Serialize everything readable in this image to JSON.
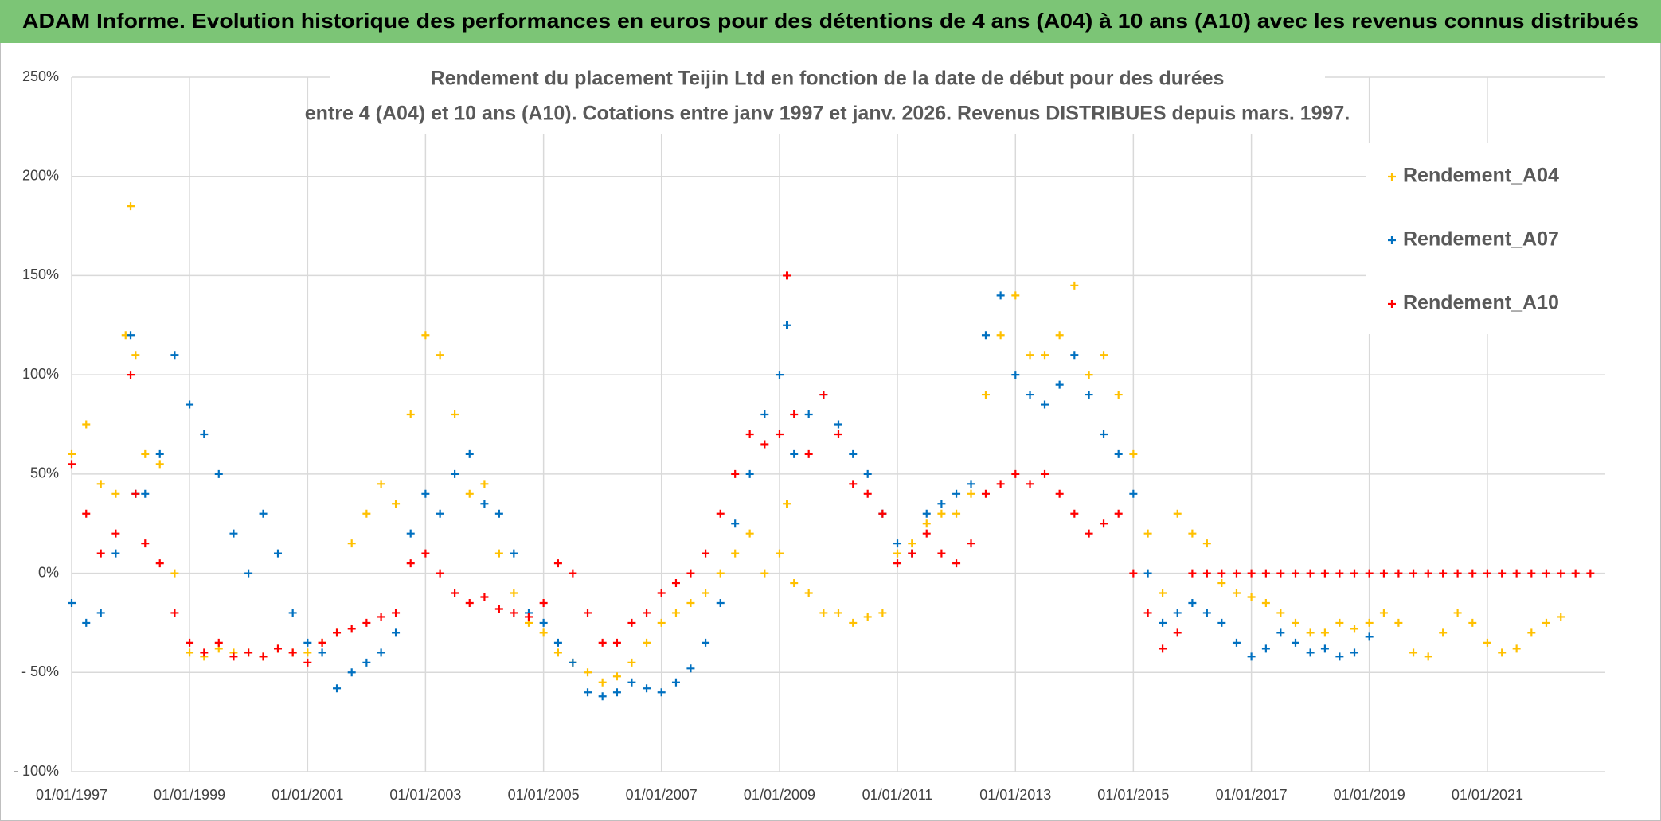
{
  "chart_data": {
    "type": "scatter",
    "title": "ADAM Informe. Evolution historique des performances en euros pour des détentions de 4 ans (A04) à 10 ans (A10) avec les revenus connus distribués",
    "subtitle": [
      "Rendement du placement Teijin Ltd en fonction de la date de début pour des durées",
      "entre 4 (A04) et 10 ans (A10). Cotations entre janv 1997 et janv. 2026. Revenus DISTRIBUES depuis mars. 1997."
    ],
    "xlim": [
      "01/01/1997",
      "01/01/2023"
    ],
    "xticks": [
      "01/01/1997",
      "01/01/1999",
      "01/01/2001",
      "01/01/2003",
      "01/01/2005",
      "01/01/2007",
      "01/01/2009",
      "01/01/2011",
      "01/01/2013",
      "01/01/2015",
      "01/01/2017",
      "01/01/2019",
      "01/01/2021"
    ],
    "ylim": [
      -100,
      250
    ],
    "yticks": [
      {
        "value": -100,
        "label": "- 100%"
      },
      {
        "value": -50,
        "label": "- 50%"
      },
      {
        "value": 0,
        "label": "0%"
      },
      {
        "value": 50,
        "label": "50%"
      },
      {
        "value": 100,
        "label": "100%"
      },
      {
        "value": 150,
        "label": "150%"
      },
      {
        "value": 200,
        "label": "200%"
      },
      {
        "value": 250,
        "label": "250%"
      }
    ],
    "grid": true,
    "legend": "top-right",
    "series": [
      {
        "name": "Rendement_A04",
        "color": "#ffc000",
        "x": [
          "01/01/1997",
          "01/04/1997",
          "01/07/1997",
          "01/10/1997",
          "01/12/1997",
          "01/01/1998",
          "01/02/1998",
          "01/04/1998",
          "01/07/1998",
          "01/10/1998",
          "01/01/1999",
          "01/04/1999",
          "01/07/1999",
          "01/10/1999",
          "01/01/2000",
          "01/04/2000",
          "01/07/2000",
          "01/10/2000",
          "01/01/2001",
          "01/04/2001",
          "01/07/2001",
          "01/10/2001",
          "01/01/2002",
          "01/04/2002",
          "01/07/2002",
          "01/10/2002",
          "01/01/2003",
          "01/04/2003",
          "01/07/2003",
          "01/10/2003",
          "01/01/2004",
          "01/04/2004",
          "01/07/2004",
          "01/10/2004",
          "01/01/2005",
          "01/04/2005",
          "01/07/2005",
          "01/10/2005",
          "01/01/2006",
          "01/04/2006",
          "01/07/2006",
          "01/10/2006",
          "01/01/2007",
          "01/04/2007",
          "01/07/2007",
          "01/10/2007",
          "01/01/2008",
          "01/04/2008",
          "01/07/2008",
          "01/10/2008",
          "01/01/2009",
          "15/02/2009",
          "01/04/2009",
          "01/07/2009",
          "01/10/2009",
          "01/01/2010",
          "01/04/2010",
          "01/07/2010",
          "01/10/2010",
          "01/01/2011",
          "01/04/2011",
          "01/07/2011",
          "01/10/2011",
          "01/01/2012",
          "01/04/2012",
          "01/07/2012",
          "01/10/2012",
          "01/01/2013",
          "01/04/2013",
          "01/07/2013",
          "01/10/2013",
          "01/01/2014",
          "01/04/2014",
          "01/07/2014",
          "01/10/2014",
          "01/01/2015",
          "01/04/2015",
          "01/07/2015",
          "01/10/2015",
          "01/01/2016",
          "01/04/2016",
          "01/07/2016",
          "01/10/2016",
          "01/01/2017",
          "01/04/2017",
          "01/07/2017",
          "01/10/2017",
          "01/01/2018",
          "01/04/2018",
          "01/07/2018",
          "01/10/2018",
          "01/01/2019",
          "01/04/2019",
          "01/07/2019",
          "01/10/2019",
          "01/01/2020",
          "01/04/2020",
          "01/07/2020",
          "01/10/2020",
          "01/01/2021",
          "01/04/2021",
          "01/07/2021",
          "01/10/2021",
          "01/01/2022",
          "01/04/2022"
        ],
        "values": [
          60,
          75,
          45,
          40,
          120,
          185,
          110,
          60,
          55,
          0,
          -40,
          -42,
          -38,
          -40,
          -40,
          -42,
          -38,
          -40,
          -40,
          -35,
          -30,
          15,
          30,
          45,
          35,
          80,
          120,
          110,
          80,
          40,
          45,
          10,
          -10,
          -25,
          -30,
          -40,
          -45,
          -50,
          -55,
          -52,
          -45,
          -35,
          -25,
          -20,
          -15,
          -10,
          0,
          10,
          20,
          0,
          10,
          35,
          -5,
          -10,
          -20,
          -20,
          -25,
          -22,
          -20,
          10,
          15,
          25,
          30,
          30,
          40,
          90,
          120,
          140,
          110,
          110,
          120,
          145,
          100,
          110,
          90,
          60,
          20,
          -10,
          30,
          20,
          15,
          -5,
          -10,
          -12,
          -15,
          -20,
          -25,
          -30,
          -30,
          -25,
          -28,
          -25,
          -20,
          -25,
          -40,
          -42,
          -30,
          -20,
          -25,
          -35,
          -40,
          -38,
          -30,
          -25,
          -22
        ]
      },
      {
        "name": "Rendement_A07",
        "color": "#0070c0",
        "x": [
          "01/01/1997",
          "01/04/1997",
          "01/07/1997",
          "01/10/1997",
          "01/01/1998",
          "01/02/1998",
          "01/04/1998",
          "01/07/1998",
          "01/10/1998",
          "01/01/1999",
          "01/04/1999",
          "01/07/1999",
          "01/10/1999",
          "01/01/2000",
          "01/04/2000",
          "01/07/2000",
          "01/10/2000",
          "01/01/2001",
          "01/04/2001",
          "01/07/2001",
          "01/10/2001",
          "01/01/2002",
          "01/04/2002",
          "01/07/2002",
          "01/10/2002",
          "01/01/2003",
          "01/04/2003",
          "01/07/2003",
          "01/10/2003",
          "01/01/2004",
          "01/04/2004",
          "01/07/2004",
          "01/10/2004",
          "01/01/2005",
          "01/04/2005",
          "01/07/2005",
          "01/10/2005",
          "01/01/2006",
          "01/04/2006",
          "01/07/2006",
          "01/10/2006",
          "01/01/2007",
          "01/04/2007",
          "01/07/2007",
          "01/10/2007",
          "01/01/2008",
          "01/04/2008",
          "01/07/2008",
          "01/10/2008",
          "01/01/2009",
          "15/02/2009",
          "01/04/2009",
          "01/07/2009",
          "01/10/2009",
          "01/01/2010",
          "01/04/2010",
          "01/07/2010",
          "01/10/2010",
          "01/01/2011",
          "01/04/2011",
          "01/07/2011",
          "01/10/2011",
          "01/01/2012",
          "01/04/2012",
          "01/07/2012",
          "01/10/2012",
          "01/01/2013",
          "01/04/2013",
          "01/07/2013",
          "01/10/2013",
          "01/01/2014",
          "01/04/2014",
          "01/07/2014",
          "01/10/2014",
          "01/01/2015",
          "01/04/2015",
          "01/07/2015",
          "01/10/2015",
          "01/01/2016",
          "01/04/2016",
          "01/07/2016",
          "01/10/2016",
          "01/01/2017",
          "01/04/2017",
          "01/07/2017",
          "01/10/2017",
          "01/01/2018",
          "01/04/2018",
          "01/07/2018",
          "01/10/2018",
          "01/01/2019"
        ],
        "values": [
          -15,
          -25,
          -20,
          10,
          120,
          40,
          40,
          60,
          110,
          85,
          70,
          50,
          20,
          0,
          30,
          10,
          -20,
          -35,
          -40,
          -58,
          -50,
          -45,
          -40,
          -30,
          20,
          40,
          30,
          50,
          60,
          35,
          30,
          10,
          -20,
          -25,
          -35,
          -45,
          -60,
          -62,
          -60,
          -55,
          -58,
          -60,
          -55,
          -48,
          -35,
          -15,
          25,
          50,
          80,
          100,
          125,
          60,
          80,
          90,
          75,
          60,
          50,
          30,
          15,
          10,
          30,
          35,
          40,
          45,
          120,
          140,
          100,
          90,
          85,
          95,
          110,
          90,
          70,
          60,
          40,
          0,
          -25,
          -20,
          -15,
          -20,
          -25,
          -35,
          -42,
          -38,
          -30,
          -35,
          -40,
          -38,
          -42,
          -40,
          -32
        ]
      },
      {
        "name": "Rendement_A10",
        "color": "#ff0000",
        "x": [
          "01/01/1997",
          "01/04/1997",
          "01/07/1997",
          "01/10/1997",
          "01/01/1998",
          "01/02/1998",
          "01/04/1998",
          "01/07/1998",
          "01/10/1998",
          "01/01/1999",
          "01/04/1999",
          "01/07/1999",
          "01/10/1999",
          "01/01/2000",
          "01/04/2000",
          "01/07/2000",
          "01/10/2000",
          "01/01/2001",
          "01/04/2001",
          "01/07/2001",
          "01/10/2001",
          "01/01/2002",
          "01/04/2002",
          "01/07/2002",
          "01/10/2002",
          "01/01/2003",
          "01/04/2003",
          "01/07/2003",
          "01/10/2003",
          "01/01/2004",
          "01/04/2004",
          "01/07/2004",
          "01/10/2004",
          "01/01/2005",
          "01/04/2005",
          "01/07/2005",
          "01/10/2005",
          "01/01/2006",
          "01/04/2006",
          "01/07/2006",
          "01/10/2006",
          "01/01/2007",
          "01/04/2007",
          "01/07/2007",
          "01/10/2007",
          "01/01/2008",
          "01/04/2008",
          "01/07/2008",
          "01/10/2008",
          "01/01/2009",
          "15/02/2009",
          "01/04/2009",
          "01/07/2009",
          "01/10/2009",
          "01/01/2010",
          "01/04/2010",
          "01/07/2010",
          "01/10/2010",
          "01/01/2011",
          "01/04/2011",
          "01/07/2011",
          "01/10/2011",
          "01/01/2012",
          "01/04/2012",
          "01/07/2012",
          "01/10/2012",
          "01/01/2013",
          "01/04/2013",
          "01/07/2013",
          "01/10/2013",
          "01/01/2014",
          "01/04/2014",
          "01/07/2014",
          "01/10/2014",
          "01/01/2015",
          "01/04/2015",
          "01/07/2015",
          "01/10/2015",
          "01/01/2016",
          "01/04/2016",
          "01/07/2016",
          "01/10/2016",
          "01/01/2017",
          "01/04/2017",
          "01/07/2017",
          "01/10/2017",
          "01/01/2018",
          "01/04/2018",
          "01/07/2018",
          "01/10/2018",
          "01/01/2019",
          "01/04/2019",
          "01/07/2019",
          "01/10/2019",
          "01/01/2020",
          "01/04/2020",
          "01/07/2020",
          "01/10/2020",
          "01/01/2021",
          "01/04/2021",
          "01/07/2021",
          "01/10/2021",
          "01/01/2022",
          "01/04/2022",
          "01/07/2022",
          "01/10/2022"
        ],
        "values": [
          55,
          30,
          10,
          20,
          100,
          40,
          15,
          5,
          -20,
          -35,
          -40,
          -35,
          -42,
          -40,
          -42,
          -38,
          -40,
          -45,
          -35,
          -30,
          -28,
          -25,
          -22,
          -20,
          5,
          10,
          0,
          -10,
          -15,
          -12,
          -18,
          -20,
          -22,
          -15,
          5,
          0,
          -20,
          -35,
          -35,
          -25,
          -20,
          -10,
          -5,
          0,
          10,
          30,
          50,
          70,
          65,
          70,
          150,
          80,
          60,
          90,
          70,
          45,
          40,
          30,
          5,
          10,
          20,
          10,
          5,
          15,
          40,
          45,
          50,
          45,
          50,
          40,
          30,
          20,
          25,
          30,
          0,
          -20,
          -38,
          -30,
          0,
          0,
          0,
          0,
          0,
          0,
          0,
          0,
          0,
          0,
          0,
          0,
          0,
          0,
          0,
          0,
          0,
          0,
          0,
          0,
          0,
          0,
          0,
          0,
          0,
          0,
          0,
          0
        ]
      }
    ]
  }
}
